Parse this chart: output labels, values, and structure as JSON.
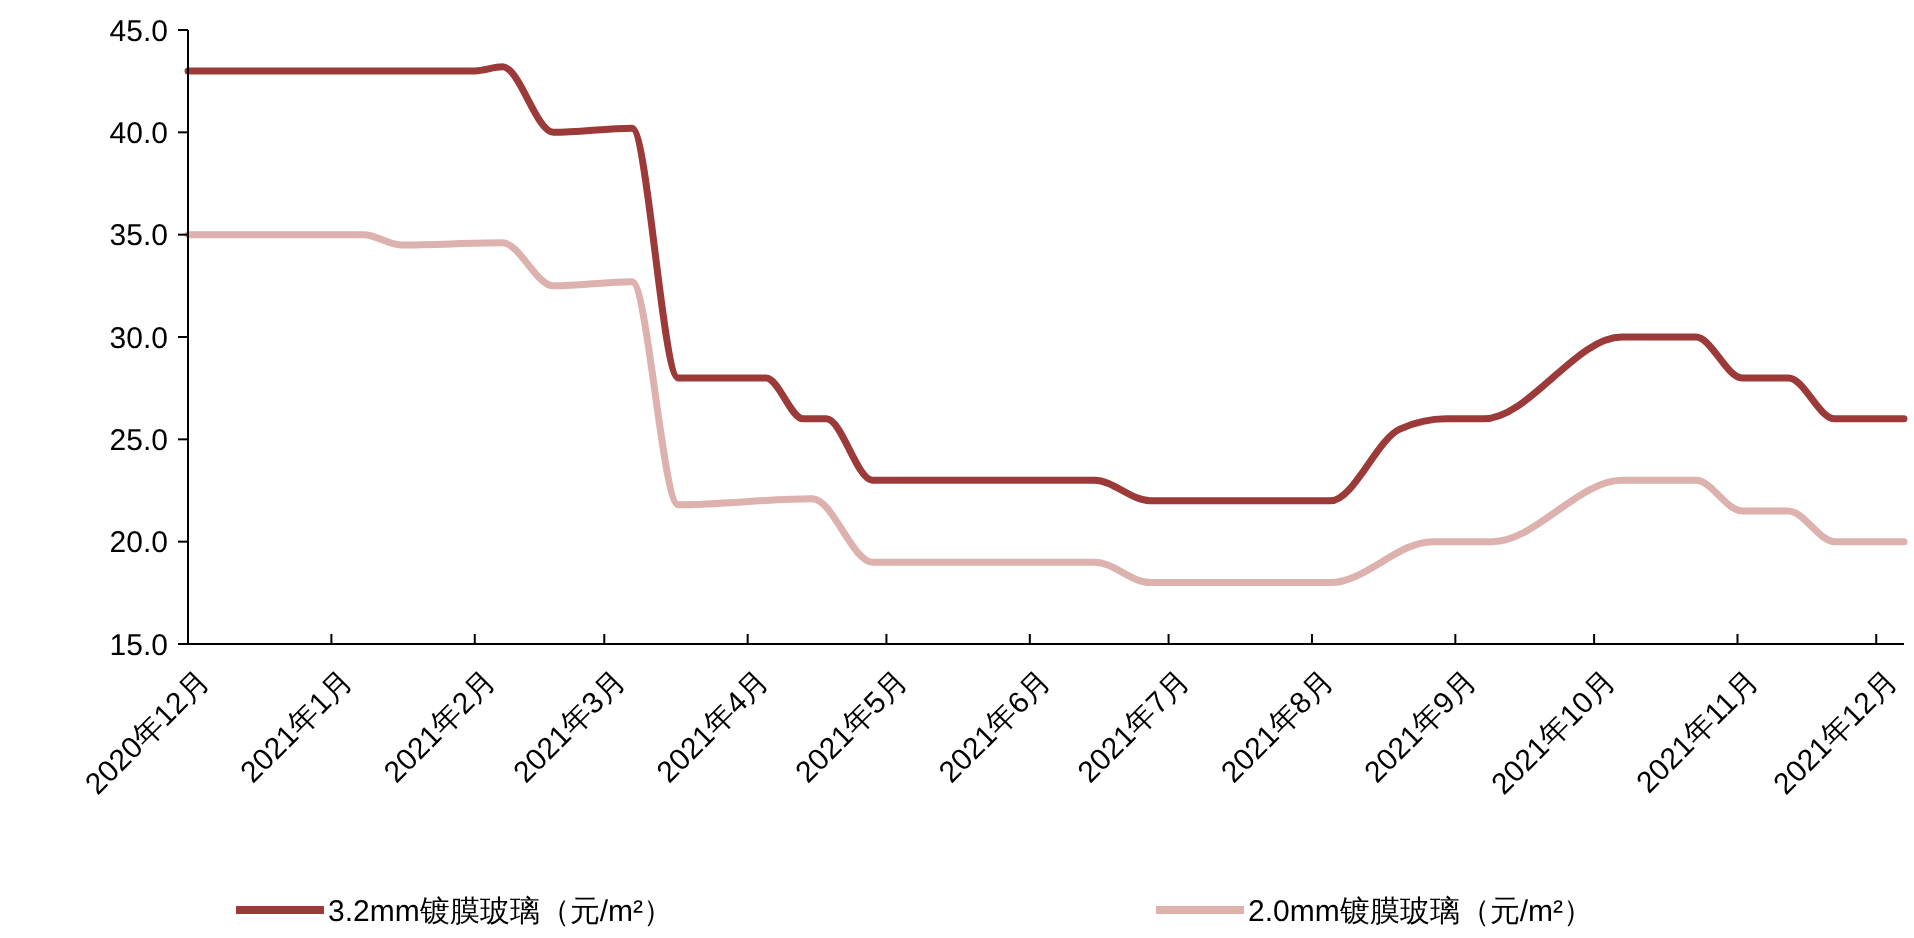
{
  "chart_data": {
    "type": "line",
    "x": [
      "2020-12-01",
      "2021-02-01",
      "2021-02-07",
      "2021-02-18",
      "2021-03-07",
      "2021-03-17",
      "2021-04-05",
      "2021-04-13",
      "2021-04-18",
      "2021-04-28",
      "2021-06-15",
      "2021-06-27",
      "2021-08-02",
      "2021-08-05",
      "2021-08-20",
      "2021-08-30",
      "2021-09-07",
      "2021-10-07",
      "2021-10-23",
      "2021-11-02",
      "2021-11-12",
      "2021-11-22",
      "2021-12-07"
    ],
    "series": [
      {
        "name": "3.2mm镀膜玻璃（元/m²）",
        "color": "#9b3a38",
        "values": [
          43,
          43,
          43.2,
          40,
          40.2,
          28,
          28,
          26,
          26,
          23,
          23,
          22,
          22,
          22,
          25.5,
          26,
          26,
          30,
          30,
          28,
          28,
          26,
          26
        ]
      },
      {
        "name": "2.0mm镀膜玻璃（元/m²）",
        "color": "#dcb1ae",
        "x": [
          "2020-12-01",
          "2021-01-08",
          "2021-01-16",
          "2021-02-07",
          "2021-02-18",
          "2021-03-07",
          "2021-03-17",
          "2021-04-15",
          "2021-04-28",
          "2021-06-15",
          "2021-06-27",
          "2021-08-05",
          "2021-08-27",
          "2021-09-09",
          "2021-10-07",
          "2021-10-23",
          "2021-11-02",
          "2021-11-12",
          "2021-11-22",
          "2021-12-07"
        ],
        "values": [
          35,
          35,
          34.5,
          34.6,
          32.5,
          32.7,
          21.8,
          22.1,
          19,
          19,
          18,
          18,
          20,
          20,
          23,
          23,
          21.5,
          21.5,
          20,
          20
        ]
      }
    ],
    "xlim": [
      "2020-12-01",
      "2021-12-07"
    ],
    "xticks": [
      {
        "value": "2020-12-01",
        "label": "2020年12月"
      },
      {
        "value": "2021-01-01",
        "label": "2021年1月"
      },
      {
        "value": "2021-02-01",
        "label": "2021年2月"
      },
      {
        "value": "2021-03-01",
        "label": "2021年3月"
      },
      {
        "value": "2021-04-01",
        "label": "2021年4月"
      },
      {
        "value": "2021-05-01",
        "label": "2021年5月"
      },
      {
        "value": "2021-06-01",
        "label": "2021年6月"
      },
      {
        "value": "2021-07-01",
        "label": "2021年7月"
      },
      {
        "value": "2021-08-01",
        "label": "2021年8月"
      },
      {
        "value": "2021-09-01",
        "label": "2021年9月"
      },
      {
        "value": "2021-10-01",
        "label": "2021年10月"
      },
      {
        "value": "2021-11-01",
        "label": "2021年11月"
      },
      {
        "value": "2021-12-01",
        "label": "2021年12月"
      }
    ],
    "ylim": [
      15,
      45
    ],
    "yticks": [
      {
        "value": 15,
        "label": "15.0"
      },
      {
        "value": 20,
        "label": "20.0"
      },
      {
        "value": 25,
        "label": "25.0"
      },
      {
        "value": 30,
        "label": "30.0"
      },
      {
        "value": 35,
        "label": "35.0"
      },
      {
        "value": 40,
        "label": "40.0"
      },
      {
        "value": 45,
        "label": "45.0"
      }
    ],
    "legend": "bottom",
    "grid": false,
    "marker": "none",
    "line_style": "solid"
  }
}
